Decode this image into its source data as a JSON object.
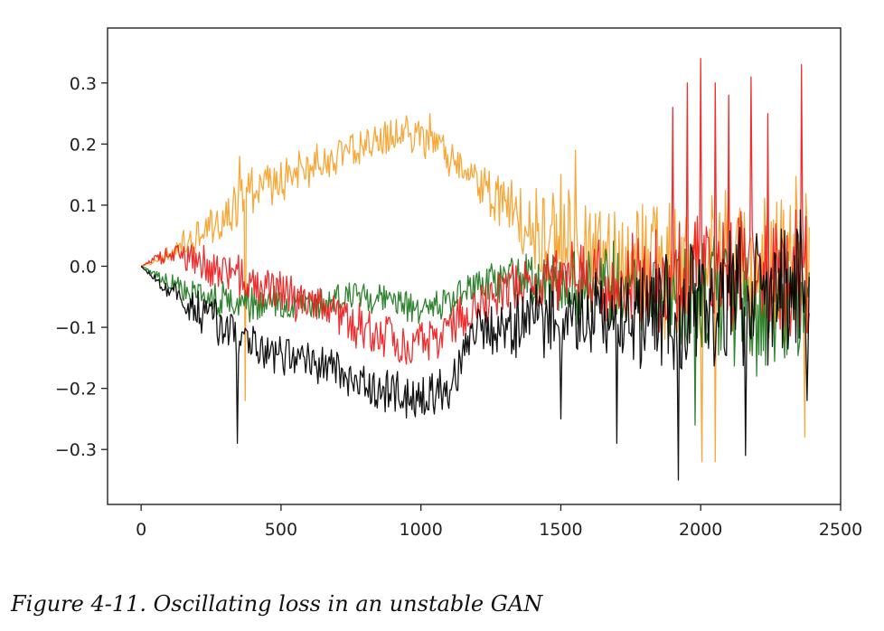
{
  "caption": "Figure 4-11. Oscillating loss in an unstable GAN",
  "chart_data": {
    "type": "line",
    "title": "",
    "xlabel": "",
    "ylabel": "",
    "xlim": [
      -120,
      2500
    ],
    "ylim": [
      -0.39,
      0.39
    ],
    "x_ticks": [
      0,
      500,
      1000,
      1500,
      2000,
      2500
    ],
    "x_tick_labels": [
      "0",
      "500",
      "1000",
      "1500",
      "2000",
      "2500"
    ],
    "y_ticks": [
      0.3,
      0.2,
      0.1,
      0.0,
      -0.1,
      -0.2,
      -0.3
    ],
    "y_tick_labels": [
      "0.3",
      "0.2",
      "0.1",
      "0.0",
      "−0.1",
      "−0.2",
      "−0.3"
    ],
    "grid": false,
    "x_range": [
      0,
      2390
    ],
    "series": [
      {
        "name": "orange",
        "color": "#f7a128",
        "trend": [
          [
            0,
            0.0
          ],
          [
            100,
            0.02
          ],
          [
            200,
            0.05
          ],
          [
            300,
            0.09
          ],
          [
            400,
            0.12
          ],
          [
            500,
            0.14
          ],
          [
            600,
            0.16
          ],
          [
            700,
            0.18
          ],
          [
            800,
            0.2
          ],
          [
            900,
            0.21
          ],
          [
            950,
            0.22
          ],
          [
            1000,
            0.21
          ],
          [
            1100,
            0.18
          ],
          [
            1200,
            0.14
          ],
          [
            1300,
            0.1
          ],
          [
            1400,
            0.06
          ],
          [
            1500,
            0.03
          ],
          [
            1600,
            0.02
          ],
          [
            1800,
            0.0
          ],
          [
            2000,
            0.0
          ],
          [
            2200,
            0.0
          ],
          [
            2390,
            0.0
          ]
        ],
        "noise": [
          [
            0,
            0.0
          ],
          [
            150,
            0.02
          ],
          [
            300,
            0.04
          ],
          [
            800,
            0.025
          ],
          [
            1200,
            0.03
          ],
          [
            1400,
            0.07
          ],
          [
            1800,
            0.1
          ],
          [
            2390,
            0.13
          ]
        ],
        "spikes": [
          [
            350,
            0.18
          ],
          [
            370,
            -0.22
          ],
          [
            680,
            0.19
          ],
          [
            1030,
            0.25
          ],
          [
            1500,
            0.15
          ],
          [
            1550,
            0.19
          ],
          [
            2005,
            -0.32
          ],
          [
            2050,
            -0.32
          ],
          [
            2370,
            -0.28
          ]
        ],
        "seed": 11
      },
      {
        "name": "green",
        "color": "#1f7a1f",
        "trend": [
          [
            0,
            0.0
          ],
          [
            200,
            -0.05
          ],
          [
            400,
            -0.06
          ],
          [
            600,
            -0.06
          ],
          [
            800,
            -0.05
          ],
          [
            1000,
            -0.07
          ],
          [
            1100,
            -0.06
          ],
          [
            1200,
            -0.03
          ],
          [
            1300,
            -0.02
          ],
          [
            1600,
            -0.03
          ],
          [
            2000,
            -0.05
          ],
          [
            2390,
            -0.06
          ]
        ],
        "noise": [
          [
            0,
            0.0
          ],
          [
            200,
            0.025
          ],
          [
            1200,
            0.025
          ],
          [
            1500,
            0.05
          ],
          [
            2000,
            0.09
          ],
          [
            2390,
            0.1
          ]
        ],
        "spikes": [
          [
            1980,
            -0.26
          ],
          [
            2200,
            -0.18
          ]
        ],
        "seed": 23
      },
      {
        "name": "red",
        "color": "#ee1d1d",
        "trend": [
          [
            0,
            0.0
          ],
          [
            100,
            0.02
          ],
          [
            200,
            0.01
          ],
          [
            400,
            -0.03
          ],
          [
            600,
            -0.06
          ],
          [
            800,
            -0.1
          ],
          [
            950,
            -0.13
          ],
          [
            1050,
            -0.13
          ],
          [
            1150,
            -0.08
          ],
          [
            1300,
            -0.04
          ],
          [
            1500,
            -0.02
          ],
          [
            1800,
            -0.02
          ],
          [
            2000,
            0.0
          ],
          [
            2390,
            0.0
          ]
        ],
        "noise": [
          [
            0,
            0.0
          ],
          [
            200,
            0.03
          ],
          [
            800,
            0.035
          ],
          [
            1200,
            0.035
          ],
          [
            1500,
            0.05
          ],
          [
            1800,
            0.08
          ],
          [
            2390,
            0.11
          ]
        ],
        "spikes": [
          [
            1900,
            0.26
          ],
          [
            1950,
            0.3
          ],
          [
            2000,
            0.34
          ],
          [
            2050,
            0.3
          ],
          [
            2100,
            0.28
          ],
          [
            2180,
            0.31
          ],
          [
            2240,
            0.25
          ],
          [
            2360,
            0.33
          ]
        ],
        "seed": 37
      },
      {
        "name": "black",
        "color": "#000000",
        "trend": [
          [
            0,
            0.0
          ],
          [
            100,
            -0.04
          ],
          [
            200,
            -0.07
          ],
          [
            300,
            -0.1
          ],
          [
            400,
            -0.13
          ],
          [
            600,
            -0.16
          ],
          [
            800,
            -0.19
          ],
          [
            900,
            -0.21
          ],
          [
            1000,
            -0.22
          ],
          [
            1100,
            -0.2
          ],
          [
            1150,
            -0.15
          ],
          [
            1200,
            -0.11
          ],
          [
            1400,
            -0.09
          ],
          [
            1600,
            -0.08
          ],
          [
            1800,
            -0.08
          ],
          [
            2000,
            -0.07
          ],
          [
            2200,
            -0.05
          ],
          [
            2390,
            -0.04
          ]
        ],
        "noise": [
          [
            0,
            0.0
          ],
          [
            200,
            0.03
          ],
          [
            800,
            0.035
          ],
          [
            1200,
            0.04
          ],
          [
            1500,
            0.06
          ],
          [
            1900,
            0.1
          ],
          [
            2390,
            0.12
          ]
        ],
        "spikes": [
          [
            345,
            -0.29
          ],
          [
            1920,
            -0.35
          ],
          [
            1700,
            -0.29
          ],
          [
            1500,
            -0.25
          ],
          [
            2160,
            -0.31
          ],
          [
            2380,
            -0.22
          ]
        ],
        "seed": 53
      }
    ]
  }
}
